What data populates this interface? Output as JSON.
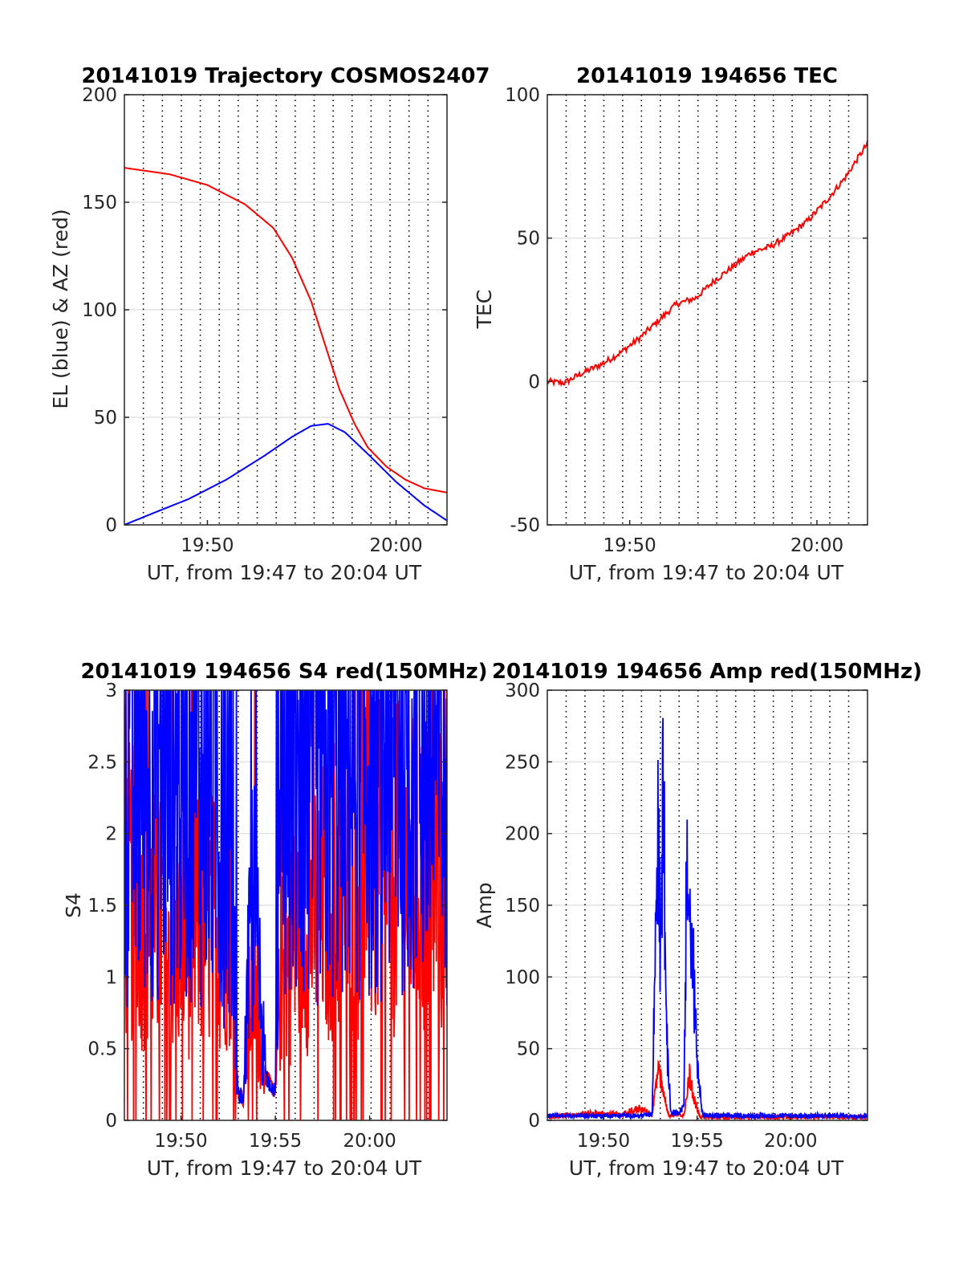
{
  "colors": {
    "red": "#ff0000",
    "blue": "#0000ff",
    "grid": "#dcdcdc",
    "axis": "#262626",
    "vgrid": "#000000"
  },
  "chart_data": [
    {
      "type": "line",
      "title": "20141019 Trajectory COSMOS2407",
      "xlabel": "UT, from 19:47 to 20:04 UT",
      "ylabel": "EL (blue) & AZ (red)",
      "xlim_minutes": [
        1185.6,
        1202.7
      ],
      "ylim": [
        0,
        200
      ],
      "yticks": [
        0,
        50,
        100,
        150,
        200
      ],
      "ytick_labels": [
        "0",
        "50",
        "100",
        "150",
        "200"
      ],
      "xticks": [
        1190,
        1200
      ],
      "xtick_labels": [
        "19:50",
        "20:00"
      ],
      "grid": true,
      "series": [
        {
          "color": "red",
          "x": [
            1185.6,
            1188,
            1190,
            1192,
            1193.5,
            1194.5,
            1195.5,
            1196.3,
            1197,
            1197.8,
            1198.5,
            1199.5,
            1200.5,
            1201.5,
            1202.7
          ],
          "y": [
            166,
            163,
            158,
            149,
            138,
            124,
            104,
            82,
            63,
            47,
            36,
            27,
            21,
            17,
            15
          ]
        },
        {
          "color": "blue",
          "x": [
            1185.6,
            1187,
            1189,
            1191,
            1193,
            1194.5,
            1195.5,
            1196.4,
            1197.3,
            1198.5,
            1200,
            1201.5,
            1202.7
          ],
          "y": [
            0,
            5,
            12,
            21,
            32,
            41,
            46,
            47,
            43,
            33,
            20,
            9,
            2
          ]
        }
      ]
    },
    {
      "type": "line",
      "title": "20141019 194656 TEC",
      "xlabel": "UT, from 19:47 to 20:04 UT",
      "ylabel": "TEC",
      "xlim_minutes": [
        1185.6,
        1202.7
      ],
      "ylim": [
        -50,
        100
      ],
      "yticks": [
        -50,
        0,
        50,
        100
      ],
      "ytick_labels": [
        "-50",
        "0",
        "50",
        "100"
      ],
      "xticks": [
        1190,
        1200
      ],
      "xtick_labels": [
        "19:50",
        "20:00"
      ],
      "grid": true,
      "series": [
        {
          "color": "red",
          "x": [
            1185.6,
            1186.5,
            1187.5,
            1188.5,
            1189.5,
            1190.5,
            1191.5,
            1192.5,
            1193.5,
            1194.5,
            1195.5,
            1196.5,
            1197.5,
            1198.5,
            1199.5,
            1200.5,
            1201.5,
            1202.7
          ],
          "y": [
            0,
            -0.5,
            3,
            6,
            10,
            15,
            21,
            27,
            29,
            35,
            40,
            45,
            47,
            51,
            56,
            63,
            71,
            83
          ]
        }
      ]
    },
    {
      "type": "line",
      "title": "20141019 194656 S4 red(150MHz)",
      "xlabel": "UT, from 19:47 to 20:04 UT",
      "ylabel": "S4",
      "xlim_minutes": [
        1187,
        1204.1
      ],
      "ylim": [
        0,
        3
      ],
      "yticks": [
        0,
        0.5,
        1,
        1.5,
        2,
        2.5,
        3
      ],
      "ytick_labels": [
        "0",
        "0.5",
        "1",
        "1.5",
        "2",
        "2.5",
        "3"
      ],
      "xticks": [
        1190,
        1195,
        1200
      ],
      "xtick_labels": [
        "19:50",
        "19:55",
        "20:00"
      ],
      "grid": true,
      "series": [
        {
          "color": "red",
          "x": [
            1187,
            1188.5,
            1190,
            1191.5,
            1192.7,
            1193.0,
            1193.3,
            1193.8,
            1194.5,
            1195.0,
            1195.3,
            1196.5,
            1198,
            1200,
            1202,
            1204.1
          ],
          "y": [
            1.4,
            1.2,
            1.1,
            1.2,
            1.3,
            0.2,
            0.15,
            0.9,
            0.3,
            0.2,
            0.9,
            1.2,
            1.4,
            1.5,
            1.5,
            1.4
          ]
        },
        {
          "color": "blue",
          "x": [
            1187,
            1188.5,
            1190,
            1191.5,
            1192.7,
            1193.0,
            1193.3,
            1193.8,
            1194.5,
            1195.0,
            1195.3,
            1196.5,
            1198,
            1200,
            1202,
            1204.1
          ],
          "y": [
            1.9,
            2.2,
            2.0,
            2.1,
            1.6,
            0.2,
            0.15,
            1.4,
            0.3,
            0.2,
            1.8,
            1.9,
            2.1,
            2.2,
            2.3,
            2.0
          ]
        }
      ]
    },
    {
      "type": "line",
      "title": "20141019 194656 Amp red(150MHz)",
      "xlabel": "UT, from 19:47 to 20:04 UT",
      "ylabel": "Amp",
      "xlim_minutes": [
        1187,
        1204.1
      ],
      "ylim": [
        0,
        300
      ],
      "yticks": [
        0,
        50,
        100,
        150,
        200,
        250,
        300
      ],
      "ytick_labels": [
        "0",
        "50",
        "100",
        "150",
        "200",
        "250",
        "300"
      ],
      "xticks": [
        1190,
        1195,
        1200
      ],
      "xtick_labels": [
        "19:50",
        "19:55",
        "20:00"
      ],
      "grid": true,
      "series": [
        {
          "color": "red",
          "x": [
            1187,
            1188.5,
            1189.5,
            1191,
            1192,
            1192.6,
            1192.9,
            1193.2,
            1193.5,
            1193.9,
            1194.3,
            1194.6,
            1194.9,
            1195.2,
            1196,
            1204.1
          ],
          "y": [
            1,
            3,
            4,
            3,
            8,
            2,
            40,
            20,
            2,
            4,
            2,
            35,
            12,
            1,
            1,
            1
          ]
        },
        {
          "color": "blue",
          "x": [
            1187,
            1188.5,
            1190,
            1192,
            1192.6,
            1192.9,
            1193.05,
            1193.2,
            1193.35,
            1193.6,
            1194.0,
            1194.3,
            1194.45,
            1194.65,
            1194.8,
            1195.0,
            1195.3,
            1198,
            1201,
            1204.1
          ],
          "y": [
            2,
            2,
            2,
            2,
            3,
            250,
            120,
            290,
            70,
            5,
            5,
            10,
            210,
            150,
            120,
            50,
            2,
            2,
            2,
            2
          ]
        }
      ]
    }
  ]
}
